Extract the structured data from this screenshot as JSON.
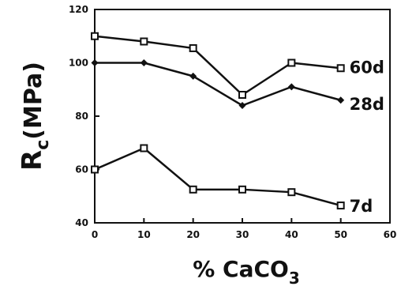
{
  "chart_data": {
    "type": "line",
    "xlabel": {
      "main": "% CaCO",
      "sub": "3"
    },
    "ylabel": {
      "base": "R",
      "sub": "c",
      "rest": "(MPa)"
    },
    "xlim": [
      0,
      60
    ],
    "ylim": [
      40,
      120
    ],
    "xticks": [
      0,
      10,
      20,
      30,
      40,
      50,
      60
    ],
    "yticks": [
      40,
      60,
      80,
      100,
      120
    ],
    "grid": false,
    "series": [
      {
        "name": "60d",
        "marker": "square",
        "x": [
          0,
          10,
          20,
          30,
          40,
          50
        ],
        "values": [
          110,
          108,
          105.5,
          88,
          100,
          98
        ]
      },
      {
        "name": "28d",
        "marker": "diamond",
        "x": [
          0,
          10,
          20,
          30,
          40,
          50
        ],
        "values": [
          100,
          100,
          95,
          84,
          91,
          86
        ]
      },
      {
        "name": "7d",
        "marker": "square",
        "x": [
          0,
          10,
          20,
          30,
          40,
          50
        ],
        "values": [
          60,
          68,
          52.5,
          52.5,
          51.5,
          46.5
        ]
      }
    ]
  }
}
